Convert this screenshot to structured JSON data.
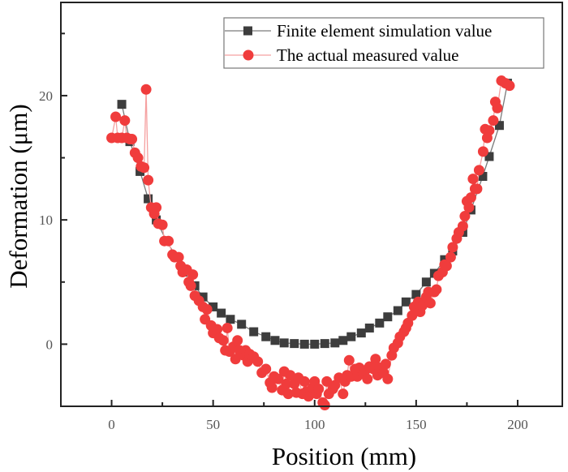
{
  "chart_data": {
    "type": "line",
    "title": "",
    "xlabel": "Position (mm)",
    "ylabel": "Deformation (μm)",
    "xlim": [
      -25,
      222
    ],
    "ylim": [
      -5,
      27.5
    ],
    "xticks": [
      0,
      50,
      100,
      150,
      200
    ],
    "xtick_labels": [
      "0",
      "50",
      "100",
      "150",
      "200"
    ],
    "xminor": [
      25,
      75,
      125,
      175
    ],
    "yticks": [
      0,
      10,
      20
    ],
    "ytick_labels": [
      "0",
      "10",
      "20"
    ],
    "yminor": [
      5,
      15,
      25
    ],
    "grid": false,
    "legend_position": "top-right",
    "series": [
      {
        "name": "Finite element simulation value",
        "marker": "square",
        "color": "#3d3d3d",
        "line_color": "#7a7a7a",
        "points": [
          [
            5,
            19.3
          ],
          [
            9,
            16.3
          ],
          [
            14,
            13.9
          ],
          [
            18,
            11.7
          ],
          [
            22,
            10.0
          ],
          [
            27,
            8.3
          ],
          [
            32,
            7.0
          ],
          [
            36,
            5.8
          ],
          [
            41,
            4.7
          ],
          [
            45,
            3.8
          ],
          [
            50,
            3.0
          ],
          [
            54,
            2.5
          ],
          [
            58.5,
            2.0
          ],
          [
            64,
            1.6
          ],
          [
            70,
            1.0
          ],
          [
            76,
            0.6
          ],
          [
            80.5,
            0.3
          ],
          [
            85,
            0.1
          ],
          [
            90,
            0.05
          ],
          [
            95,
            0.0
          ],
          [
            100,
            0.0
          ],
          [
            105,
            0.05
          ],
          [
            110,
            0.1
          ],
          [
            114,
            0.3
          ],
          [
            118,
            0.6
          ],
          [
            123,
            0.9
          ],
          [
            127,
            1.3
          ],
          [
            132,
            1.7
          ],
          [
            136,
            2.2
          ],
          [
            141,
            2.7
          ],
          [
            145,
            3.4
          ],
          [
            150,
            4.0
          ],
          [
            155,
            5.0
          ],
          [
            159,
            5.7
          ],
          [
            164,
            6.8
          ],
          [
            168,
            7.5
          ],
          [
            173,
            9.0
          ],
          [
            177,
            10.8
          ],
          [
            182.8,
            13.5
          ],
          [
            186,
            15.1
          ],
          [
            191,
            17.6
          ],
          [
            195,
            21.0
          ]
        ]
      },
      {
        "name": "The actual measured value",
        "marker": "circle",
        "color": "#f03c3c",
        "line_color": "#f5a0a0",
        "points": [
          [
            0,
            16.6
          ],
          [
            2,
            18.3
          ],
          [
            3,
            16.6
          ],
          [
            5,
            16.6
          ],
          [
            6.5,
            18.0
          ],
          [
            7.5,
            16.6
          ],
          [
            9,
            16.5
          ],
          [
            10,
            16.5
          ],
          [
            11.5,
            15.4
          ],
          [
            13,
            15.0
          ],
          [
            14.5,
            14.3
          ],
          [
            16,
            14.2
          ],
          [
            17,
            20.5
          ],
          [
            18,
            13.2
          ],
          [
            19.5,
            11.0
          ],
          [
            21,
            10.5
          ],
          [
            22,
            11.0
          ],
          [
            23,
            9.7
          ],
          [
            25,
            9.6
          ],
          [
            26,
            8.3
          ],
          [
            28,
            8.3
          ],
          [
            30,
            7.2
          ],
          [
            31,
            7.0
          ],
          [
            33,
            7.0
          ],
          [
            34,
            6.3
          ],
          [
            35,
            5.8
          ],
          [
            37,
            6.0
          ],
          [
            38,
            5.0
          ],
          [
            39,
            4.7
          ],
          [
            40,
            5.6
          ],
          [
            41,
            3.9
          ],
          [
            43,
            3.5
          ],
          [
            45,
            3.0
          ],
          [
            46,
            2.0
          ],
          [
            47,
            2.8
          ],
          [
            49,
            1.5
          ],
          [
            50,
            0.9
          ],
          [
            52,
            1.2
          ],
          [
            53,
            0.5
          ],
          [
            55,
            0.3
          ],
          [
            56,
            -0.5
          ],
          [
            57,
            1.3
          ],
          [
            58,
            -0.6
          ],
          [
            60,
            -0.2
          ],
          [
            61,
            -1.2
          ],
          [
            62,
            0.3
          ],
          [
            63,
            -0.5
          ],
          [
            65,
            -0.9
          ],
          [
            66,
            -0.5
          ],
          [
            67,
            -1.4
          ],
          [
            68,
            -0.8
          ],
          [
            70,
            -1.0
          ],
          [
            72,
            -1.4
          ],
          [
            74,
            -2.3
          ],
          [
            76,
            -2.0
          ],
          [
            78,
            -3.1
          ],
          [
            79,
            -3.5
          ],
          [
            80,
            -2.6
          ],
          [
            82,
            -2.8
          ],
          [
            84,
            -3.7
          ],
          [
            85,
            -2.2
          ],
          [
            86,
            -3.2
          ],
          [
            87,
            -4.0
          ],
          [
            88,
            -2.5
          ],
          [
            90,
            -3.2
          ],
          [
            91,
            -3.9
          ],
          [
            92,
            -2.7
          ],
          [
            94,
            -4.0
          ],
          [
            95,
            -3.0
          ],
          [
            96,
            -3.8
          ],
          [
            97,
            -4.2
          ],
          [
            99,
            -3.5
          ],
          [
            100,
            -3.0
          ],
          [
            101,
            -4.0
          ],
          [
            102,
            -3.6
          ],
          [
            104,
            -4.7
          ],
          [
            105,
            -4.9
          ],
          [
            106,
            -3.0
          ],
          [
            107,
            -4.0
          ],
          [
            109,
            -3.6
          ],
          [
            110,
            -3.3
          ],
          [
            112,
            -2.7
          ],
          [
            114,
            -4.0
          ],
          [
            115,
            -3.0
          ],
          [
            116,
            -2.5
          ],
          [
            117,
            -1.3
          ],
          [
            118,
            -2.6
          ],
          [
            120,
            -2.0
          ],
          [
            121,
            -2.6
          ],
          [
            122,
            -1.9
          ],
          [
            124,
            -2.4
          ],
          [
            125,
            -2.1
          ],
          [
            126,
            -2.8
          ],
          [
            127,
            -1.8
          ],
          [
            129,
            -2.0
          ],
          [
            130,
            -1.2
          ],
          [
            131,
            -2.5
          ],
          [
            132,
            -1.9
          ],
          [
            134,
            -2.3
          ],
          [
            135,
            -1.6
          ],
          [
            136,
            -2.8
          ],
          [
            138,
            -0.9
          ],
          [
            139,
            -0.3
          ],
          [
            141,
            0.1
          ],
          [
            142,
            0.6
          ],
          [
            144,
            1.0
          ],
          [
            145,
            1.3
          ],
          [
            146,
            1.7
          ],
          [
            148,
            2.3
          ],
          [
            149,
            3.0
          ],
          [
            151,
            3.4
          ],
          [
            152,
            2.6
          ],
          [
            153,
            3.1
          ],
          [
            155,
            3.8
          ],
          [
            156,
            4.2
          ],
          [
            157,
            3.3
          ],
          [
            159,
            4.2
          ],
          [
            160,
            4.4
          ],
          [
            161,
            5.5
          ],
          [
            163,
            5.8
          ],
          [
            164,
            6.4
          ],
          [
            165,
            6.3
          ],
          [
            167,
            7.0
          ],
          [
            168,
            7.8
          ],
          [
            170,
            8.5
          ],
          [
            171,
            9.0
          ],
          [
            173,
            9.5
          ],
          [
            174,
            10.3
          ],
          [
            175,
            11.5
          ],
          [
            176,
            11.0
          ],
          [
            177,
            11.8
          ],
          [
            178,
            13.3
          ],
          [
            179,
            12.5
          ],
          [
            180,
            12.5
          ],
          [
            181,
            14.0
          ],
          [
            183,
            15.5
          ],
          [
            184,
            17.3
          ],
          [
            185,
            16.6
          ],
          [
            186,
            17.2
          ],
          [
            188,
            18.0
          ],
          [
            189,
            19.5
          ],
          [
            190,
            19.0
          ],
          [
            192,
            21.2
          ],
          [
            194,
            21.0
          ],
          [
            196,
            20.8
          ]
        ]
      }
    ]
  }
}
